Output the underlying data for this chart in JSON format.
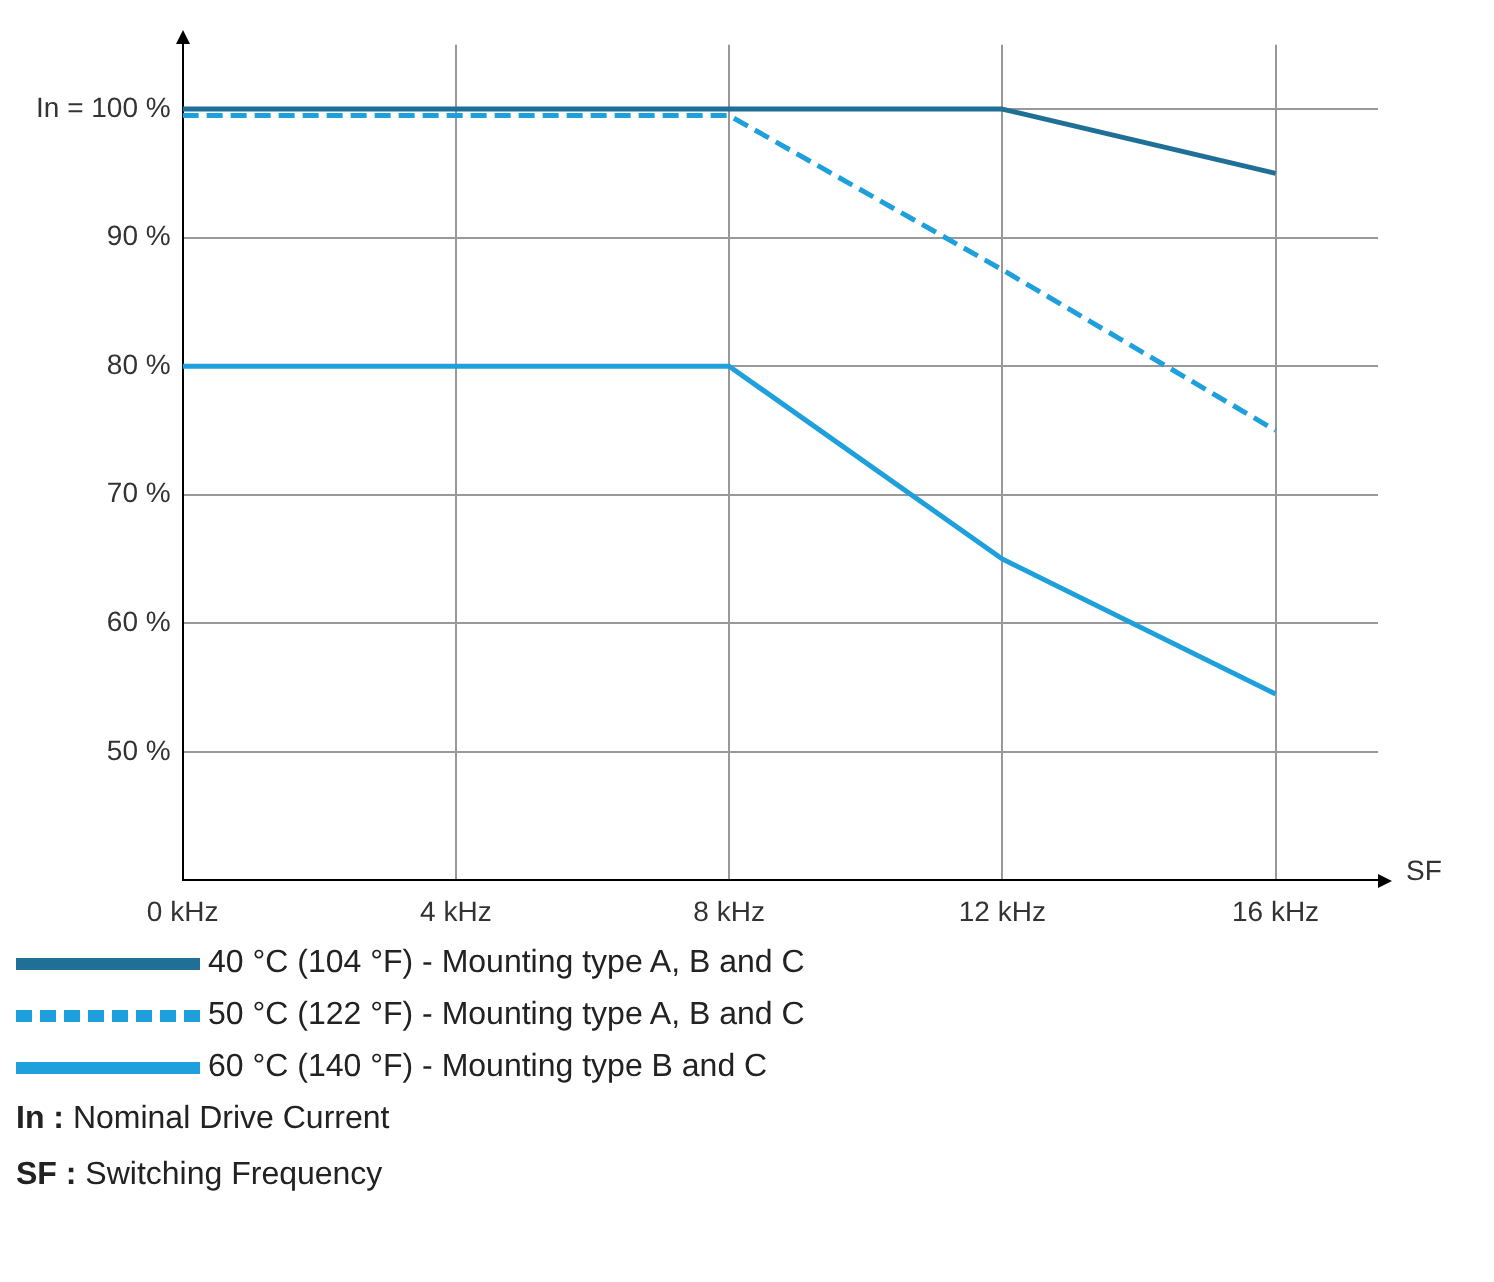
{
  "chart_data": {
    "type": "line",
    "xlabel": "SF",
    "x": [
      0,
      4,
      8,
      12,
      16
    ],
    "series": [
      {
        "name": "40 °C (104 °F) - Mounting type A, B and C",
        "color": "#1f6f96",
        "line_style": "solid",
        "values": [
          100,
          100,
          100,
          100,
          95
        ]
      },
      {
        "name": "50 °C (122 °F) - Mounting type A, B and C",
        "color": "#1ea0dc",
        "line_style": "dashed",
        "values": [
          99.5,
          99.5,
          99.5,
          87.5,
          75
        ]
      },
      {
        "name": "60 °C (140 °F) - Mounting type B and C",
        "color": "#1ea0dc",
        "line_style": "solid",
        "values": [
          80,
          80,
          80,
          65,
          54.5
        ]
      }
    ],
    "xlim": [
      0,
      17.5
    ],
    "ylim": [
      40,
      105
    ],
    "xticks": [
      {
        "value": 0,
        "label": "0 kHz"
      },
      {
        "value": 4,
        "label": "4 kHz"
      },
      {
        "value": 8,
        "label": "8 kHz"
      },
      {
        "value": 12,
        "label": "12 kHz"
      },
      {
        "value": 16,
        "label": "16 kHz"
      }
    ],
    "yticks": [
      {
        "value": 50,
        "label": "50 %"
      },
      {
        "value": 60,
        "label": "60 %"
      },
      {
        "value": 70,
        "label": "70 %"
      },
      {
        "value": 80,
        "label": "80 %"
      },
      {
        "value": 90,
        "label": "90 %"
      },
      {
        "value": 100,
        "label": "In = 100 %"
      }
    ],
    "grid": true,
    "legend": "bottom",
    "marker": "none",
    "annotations": [
      "In : Nominal Drive Current",
      "SF : Switching Frequency"
    ]
  }
}
